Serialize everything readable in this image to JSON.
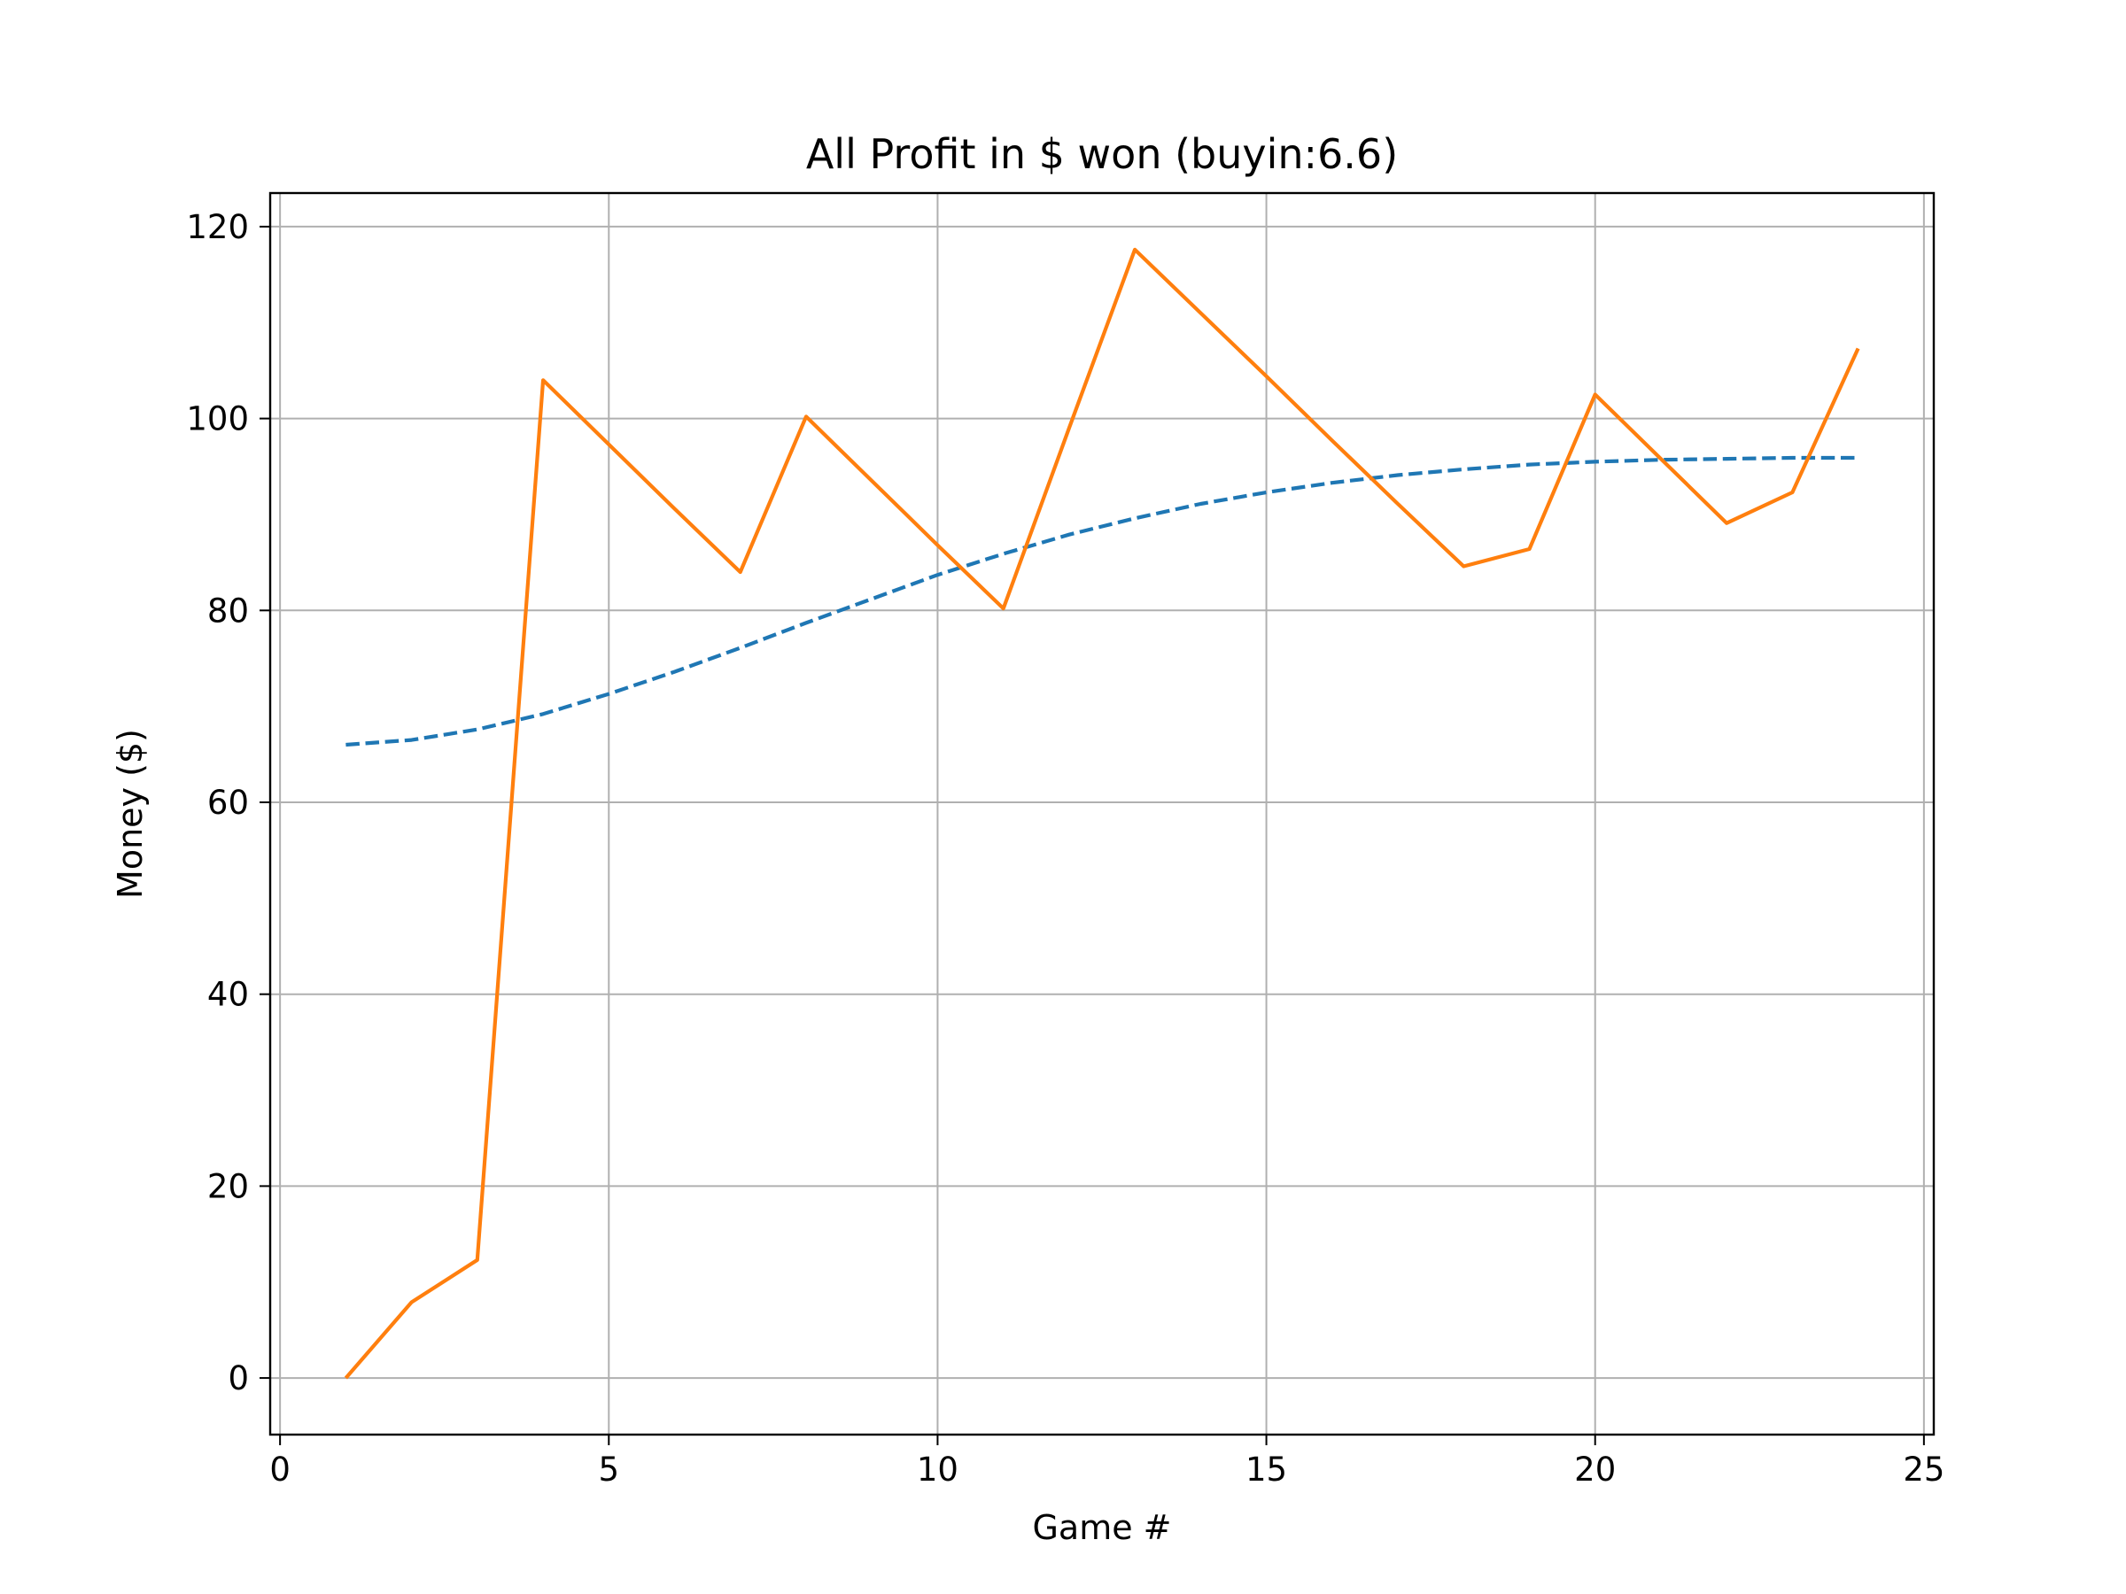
{
  "chart_data": {
    "type": "line",
    "title": "All Profit in $ won (buyin:6.6)",
    "xlabel": "Game #",
    "ylabel": "Money ($)",
    "xlim": [
      -0.15,
      25.15
    ],
    "ylim": [
      -5.9,
      123.5
    ],
    "grid": true,
    "xticks": [
      0,
      5,
      10,
      15,
      20,
      25
    ],
    "xtick_labels": [
      "0",
      "5",
      "10",
      "15",
      "20",
      "25"
    ],
    "yticks": [
      0,
      20,
      40,
      60,
      80,
      100,
      120
    ],
    "ytick_labels": [
      "0",
      "20",
      "40",
      "60",
      "80",
      "100",
      "120"
    ],
    "series": [
      {
        "color": "#1f77b4",
        "style": "dashed",
        "x": [
          1,
          2,
          3,
          4,
          5,
          6,
          7,
          8,
          9,
          10,
          11,
          12,
          13,
          14,
          15,
          16,
          17,
          18,
          19,
          20,
          21,
          22,
          23,
          24
        ],
        "y": [
          66.0,
          66.5,
          67.6,
          69.2,
          71.3,
          73.6,
          76.1,
          78.7,
          81.2,
          83.7,
          85.9,
          87.9,
          89.6,
          91.1,
          92.3,
          93.3,
          94.1,
          94.7,
          95.2,
          95.5,
          95.7,
          95.8,
          95.9,
          95.9
        ]
      },
      {
        "color": "#ff7f0e",
        "style": "solid",
        "x": [
          1,
          2,
          3,
          4,
          5,
          6,
          7,
          8,
          9,
          10,
          11,
          12,
          13,
          14,
          15,
          16,
          17,
          18,
          19,
          20,
          21,
          22,
          23,
          24
        ],
        "y": [
          0.0,
          7.9,
          12.3,
          104.0,
          97.3,
          90.6,
          84.0,
          100.2,
          93.5,
          86.8,
          80.2,
          99.0,
          117.6,
          111.0,
          104.4,
          97.7,
          91.1,
          84.6,
          86.4,
          102.5,
          95.8,
          89.1,
          92.3,
          107.3
        ]
      }
    ]
  }
}
